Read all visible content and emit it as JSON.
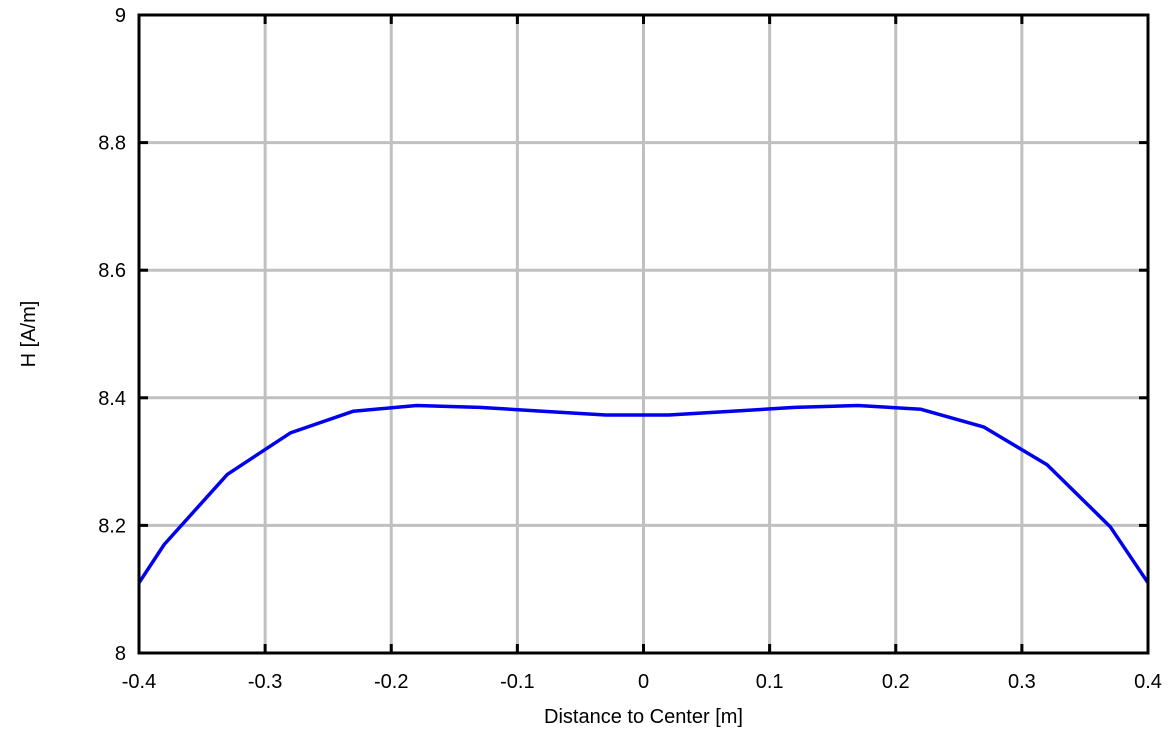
{
  "chart_data": {
    "type": "line",
    "xlabel": "Distance to Center [m]",
    "ylabel": "H [A/m]",
    "xlim": [
      -0.4,
      0.4
    ],
    "ylim": [
      8,
      9
    ],
    "xticks": [
      -0.4,
      -0.3,
      -0.2,
      -0.1,
      0,
      0.1,
      0.2,
      0.3,
      0.4
    ],
    "xtick_labels": [
      "-0.4",
      "-0.3",
      "-0.2",
      "-0.1",
      "0",
      "0.1",
      "0.2",
      "0.3",
      "0.4"
    ],
    "yticks": [
      8,
      8.2,
      8.4,
      8.6,
      8.8,
      9
    ],
    "ytick_labels": [
      "8",
      "8.2",
      "8.4",
      "8.6",
      "8.8",
      "9"
    ],
    "grid": true,
    "series": [
      {
        "color": "#0000ee",
        "x": [
          -0.4,
          -0.38,
          -0.33,
          -0.28,
          -0.23,
          -0.18,
          -0.13,
          -0.08,
          -0.03,
          0.02,
          0.07,
          0.12,
          0.17,
          0.22,
          0.27,
          0.32,
          0.37,
          0.4
        ],
        "y": [
          8.11,
          8.17,
          8.28,
          8.345,
          8.379,
          8.388,
          8.385,
          8.379,
          8.373,
          8.373,
          8.379,
          8.385,
          8.388,
          8.382,
          8.354,
          8.295,
          8.198,
          8.11
        ]
      }
    ]
  }
}
